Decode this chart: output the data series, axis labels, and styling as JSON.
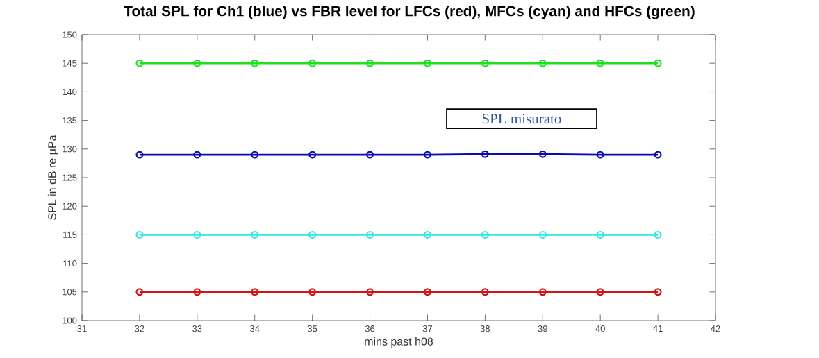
{
  "chart_data": {
    "type": "line",
    "title": "Total SPL for Ch1 (blue) vs FBR level for LFCs (red), MFCs (cyan) and HFCs (green)",
    "xlabel": "mins past h08",
    "ylabel": "SPL in dB re μPa",
    "x": [
      32,
      33,
      34,
      35,
      36,
      37,
      38,
      39,
      40,
      41
    ],
    "series": [
      {
        "color": "#1ee01e",
        "values": [
          145,
          145,
          145,
          145,
          145,
          145,
          145,
          145,
          145,
          145
        ]
      },
      {
        "color": "#0a0ab4",
        "values": [
          129,
          129,
          129,
          129,
          129,
          129,
          129.1,
          129.1,
          129,
          129
        ]
      },
      {
        "color": "#33e6e6",
        "values": [
          115,
          115,
          115,
          115,
          115,
          115,
          115,
          115,
          115,
          115
        ]
      },
      {
        "color": "#d41414",
        "values": [
          105,
          105,
          105,
          105,
          105,
          105,
          105,
          105,
          105,
          105
        ]
      }
    ],
    "xlim": [
      31,
      42
    ],
    "xticks": [
      31,
      32,
      33,
      34,
      35,
      36,
      37,
      38,
      39,
      40,
      41,
      42
    ],
    "ylim": [
      100,
      150
    ],
    "yticks": [
      100,
      105,
      110,
      115,
      120,
      125,
      130,
      135,
      140,
      145,
      150
    ],
    "annotations": [
      "SPL misurato"
    ],
    "grid": false,
    "marker": "circle",
    "line_style": "solid"
  }
}
